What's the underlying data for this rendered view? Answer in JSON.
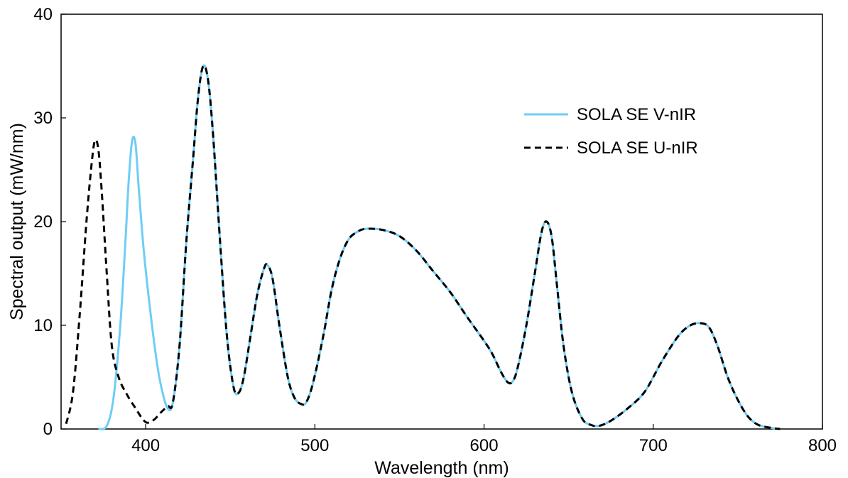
{
  "chart_data": {
    "type": "line",
    "title": "",
    "xlabel": "Wavelength (nm)",
    "ylabel": "Spectral output (mW/nm)",
    "xlim": [
      350,
      800
    ],
    "ylim": [
      0,
      40
    ],
    "xticks": [
      400,
      500,
      600,
      700,
      800
    ],
    "yticks": [
      0,
      10,
      20,
      30,
      40
    ],
    "grid": false,
    "legend_position": "top-right",
    "series": [
      {
        "name": "SOLA SE V-nIR",
        "color": "#6fcdf5",
        "style": "solid",
        "points": [
          [
            372,
            0.0
          ],
          [
            377,
            0.3
          ],
          [
            381,
            3.0
          ],
          [
            385,
            10.0
          ],
          [
            388,
            18.0
          ],
          [
            390,
            24.0
          ],
          [
            392,
            27.8
          ],
          [
            394,
            27.5
          ],
          [
            396,
            23.0
          ],
          [
            399,
            17.0
          ],
          [
            403,
            11.0
          ],
          [
            407,
            6.0
          ],
          [
            410,
            3.5
          ],
          [
            413,
            2.0
          ],
          [
            416,
            2.5
          ],
          [
            420,
            8.0
          ],
          [
            424,
            18.0
          ],
          [
            428,
            26.0
          ],
          [
            431,
            32.0
          ],
          [
            434,
            35.0
          ],
          [
            437,
            33.5
          ],
          [
            440,
            28.0
          ],
          [
            444,
            18.0
          ],
          [
            448,
            9.0
          ],
          [
            452,
            4.0
          ],
          [
            455,
            3.5
          ],
          [
            458,
            5.0
          ],
          [
            462,
            9.0
          ],
          [
            466,
            13.0
          ],
          [
            470,
            15.5
          ],
          [
            472,
            15.8
          ],
          [
            475,
            14.5
          ],
          [
            479,
            10.0
          ],
          [
            484,
            5.0
          ],
          [
            488,
            3.0
          ],
          [
            492,
            2.4
          ],
          [
            495,
            2.6
          ],
          [
            499,
            4.5
          ],
          [
            505,
            9.0
          ],
          [
            510,
            13.5
          ],
          [
            515,
            16.5
          ],
          [
            520,
            18.3
          ],
          [
            525,
            19.0
          ],
          [
            530,
            19.3
          ],
          [
            540,
            19.2
          ],
          [
            550,
            18.6
          ],
          [
            560,
            17.2
          ],
          [
            570,
            15.2
          ],
          [
            580,
            13.2
          ],
          [
            590,
            10.8
          ],
          [
            600,
            8.5
          ],
          [
            605,
            7.2
          ],
          [
            610,
            5.5
          ],
          [
            614,
            4.5
          ],
          [
            617,
            4.6
          ],
          [
            620,
            6.0
          ],
          [
            625,
            10.0
          ],
          [
            630,
            15.0
          ],
          [
            634,
            19.0
          ],
          [
            637,
            20.0
          ],
          [
            640,
            18.5
          ],
          [
            643,
            14.0
          ],
          [
            647,
            8.0
          ],
          [
            652,
            3.5
          ],
          [
            658,
            1.0
          ],
          [
            663,
            0.4
          ],
          [
            668,
            0.3
          ],
          [
            675,
            0.8
          ],
          [
            685,
            2.0
          ],
          [
            695,
            3.6
          ],
          [
            705,
            6.5
          ],
          [
            715,
            9.0
          ],
          [
            722,
            10.0
          ],
          [
            728,
            10.2
          ],
          [
            733,
            9.8
          ],
          [
            738,
            8.0
          ],
          [
            744,
            5.0
          ],
          [
            750,
            2.8
          ],
          [
            756,
            1.2
          ],
          [
            762,
            0.4
          ],
          [
            770,
            0.1
          ],
          [
            775,
            0.0
          ]
        ]
      },
      {
        "name": "SOLA SE U-nIR",
        "color": "#000000",
        "style": "dashed",
        "points": [
          [
            353,
            0.5
          ],
          [
            357,
            3.5
          ],
          [
            361,
            11.0
          ],
          [
            365,
            20.0
          ],
          [
            368,
            25.5
          ],
          [
            370,
            27.8
          ],
          [
            372,
            27.0
          ],
          [
            374,
            23.0
          ],
          [
            377,
            15.0
          ],
          [
            380,
            8.0
          ],
          [
            384,
            5.0
          ],
          [
            389,
            3.3
          ],
          [
            394,
            2.0
          ],
          [
            398,
            1.0
          ],
          [
            401,
            0.6
          ],
          [
            405,
            0.9
          ],
          [
            409,
            1.6
          ],
          [
            413,
            2.2
          ],
          [
            416,
            2.5
          ],
          [
            420,
            8.0
          ],
          [
            424,
            18.0
          ],
          [
            428,
            26.0
          ],
          [
            431,
            32.0
          ],
          [
            434,
            35.0
          ],
          [
            437,
            33.5
          ],
          [
            440,
            28.0
          ],
          [
            444,
            18.0
          ],
          [
            448,
            9.0
          ],
          [
            452,
            4.0
          ],
          [
            455,
            3.5
          ],
          [
            458,
            5.0
          ],
          [
            462,
            9.0
          ],
          [
            466,
            13.0
          ],
          [
            470,
            15.5
          ],
          [
            472,
            15.8
          ],
          [
            475,
            14.5
          ],
          [
            479,
            10.0
          ],
          [
            484,
            5.0
          ],
          [
            488,
            3.0
          ],
          [
            492,
            2.4
          ],
          [
            495,
            2.6
          ],
          [
            499,
            4.5
          ],
          [
            505,
            9.0
          ],
          [
            510,
            13.5
          ],
          [
            515,
            16.5
          ],
          [
            520,
            18.3
          ],
          [
            525,
            19.0
          ],
          [
            530,
            19.3
          ],
          [
            540,
            19.2
          ],
          [
            550,
            18.6
          ],
          [
            560,
            17.2
          ],
          [
            570,
            15.2
          ],
          [
            580,
            13.2
          ],
          [
            590,
            10.8
          ],
          [
            600,
            8.5
          ],
          [
            605,
            7.2
          ],
          [
            610,
            5.5
          ],
          [
            614,
            4.5
          ],
          [
            617,
            4.6
          ],
          [
            620,
            6.0
          ],
          [
            625,
            10.0
          ],
          [
            630,
            15.0
          ],
          [
            634,
            19.0
          ],
          [
            637,
            20.0
          ],
          [
            640,
            18.5
          ],
          [
            643,
            14.0
          ],
          [
            647,
            8.0
          ],
          [
            652,
            3.5
          ],
          [
            658,
            1.0
          ],
          [
            663,
            0.4
          ],
          [
            668,
            0.3
          ],
          [
            675,
            0.8
          ],
          [
            685,
            2.0
          ],
          [
            695,
            3.6
          ],
          [
            705,
            6.5
          ],
          [
            715,
            9.0
          ],
          [
            722,
            10.0
          ],
          [
            728,
            10.2
          ],
          [
            733,
            9.8
          ],
          [
            738,
            8.0
          ],
          [
            744,
            5.0
          ],
          [
            750,
            2.8
          ],
          [
            756,
            1.2
          ],
          [
            762,
            0.4
          ],
          [
            770,
            0.1
          ],
          [
            775,
            0.0
          ]
        ]
      }
    ]
  }
}
